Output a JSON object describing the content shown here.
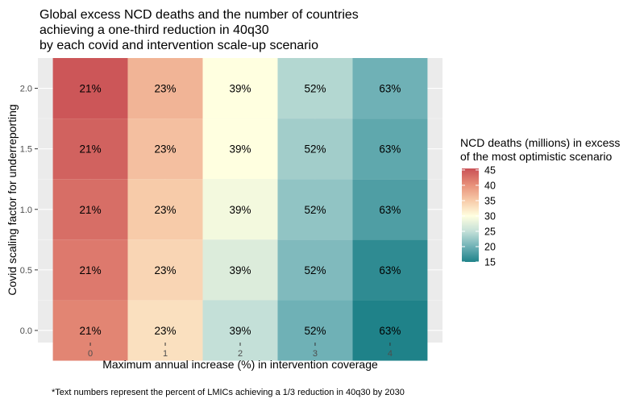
{
  "chart_data": {
    "type": "heatmap",
    "title_lines": [
      "Global excess NCD deaths and the number of countries",
      "achieving a one-third reduction in 40q30",
      "by each covid and intervention scale-up scenario"
    ],
    "xlabel": "Maximum annual increase (%) in intervention coverage",
    "ylabel": "Covid scaling factor for underreporting",
    "x_values": [
      0,
      1,
      2,
      3,
      4
    ],
    "x_tick_labels": [
      "0",
      "1",
      "2",
      "3",
      "4"
    ],
    "xlim": [
      -0.7,
      4.7
    ],
    "y_values": [
      0.0,
      0.5,
      1.0,
      1.5,
      2.0
    ],
    "y_tick_labels": [
      "0.0",
      "0.5",
      "1.0",
      "1.5",
      "2.0"
    ],
    "ylim": [
      -0.1,
      2.25
    ],
    "percent_labels": [
      "21%",
      "23%",
      "39%",
      "52%",
      "63%"
    ],
    "deaths_millions": {
      "rows_y": [
        2.0,
        1.5,
        1.0,
        0.5,
        0.0
      ],
      "values": [
        [
          45,
          37,
          30,
          24,
          20
        ],
        [
          44,
          36,
          30,
          23,
          19
        ],
        [
          43,
          35,
          29,
          22,
          18
        ],
        [
          42,
          34,
          27,
          21,
          16
        ],
        [
          41,
          33,
          25,
          20,
          15
        ]
      ]
    },
    "legend": {
      "title_lines": [
        "NCD deaths (millions) in excess",
        "of the most optimistic scenario"
      ],
      "ticks": [
        45,
        40,
        35,
        30,
        25,
        20,
        15
      ],
      "range": [
        15,
        45.5
      ],
      "colors": [
        "#1f8289",
        "#6fb1b6",
        "#c4e0d8",
        "#ffffe0",
        "#f7cba9",
        "#e8917a",
        "#c95055"
      ],
      "color_stops": [
        15,
        20,
        25,
        30,
        35,
        40,
        45.5
      ]
    },
    "caption": "*Text numbers represent the percent of LMICs achieving a 1/3 reduction in 40q30 by 2030"
  }
}
